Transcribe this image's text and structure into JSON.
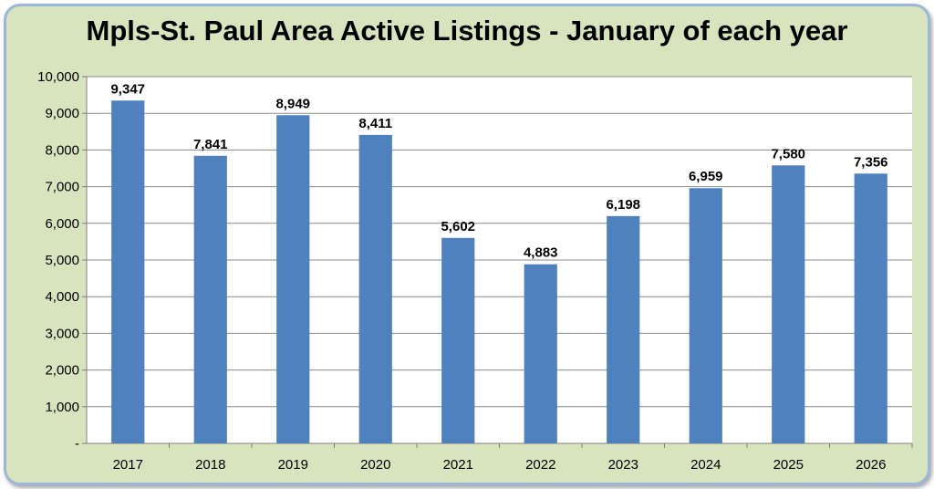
{
  "chart_data": {
    "type": "bar",
    "title": "Mpls-St. Paul Area Active Listings - January of each year",
    "categories": [
      "2017",
      "2018",
      "2019",
      "2020",
      "2021",
      "2022",
      "2023",
      "2024",
      "2025",
      "2026"
    ],
    "values": [
      9347,
      7841,
      8949,
      8411,
      5602,
      4883,
      6198,
      6959,
      7580,
      7356
    ],
    "data_labels": [
      "9,347",
      "7,841",
      "8,949",
      "8,411",
      "5,602",
      "4,883",
      "6,198",
      "6,959",
      "7,580",
      "7,356"
    ],
    "ylim": [
      0,
      10000
    ],
    "y_ticks": [
      0,
      1000,
      2000,
      3000,
      4000,
      5000,
      6000,
      7000,
      8000,
      9000,
      10000
    ],
    "y_tick_labels": [
      "-",
      "1,000",
      "2,000",
      "3,000",
      "4,000",
      "5,000",
      "6,000",
      "7,000",
      "8,000",
      "9,000",
      "10,000"
    ],
    "grid": true,
    "legend": "none",
    "colors": {
      "bar": "#4f81bd",
      "background": "#d7e4bd",
      "plot_area": "#ffffff",
      "border": "#9db6dc",
      "gridline": "#8c8c8c"
    }
  }
}
